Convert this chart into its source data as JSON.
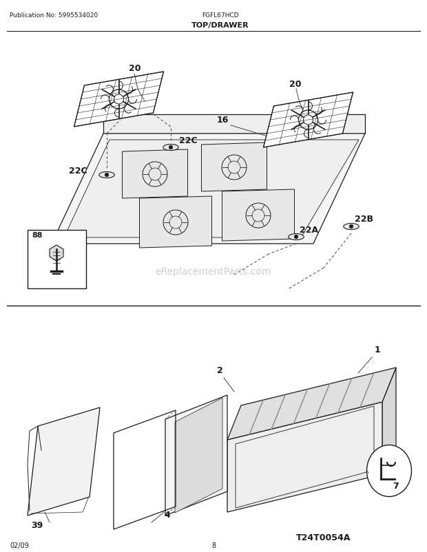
{
  "title": "TOP/DRAWER",
  "pub_no": "Publication No: 5995534020",
  "model": "FGFL67HCD",
  "date": "02/09",
  "page": "8",
  "watermark": "eReplacementParts.com",
  "watermark_color": "#c8c8c8",
  "bg_color": "#ffffff",
  "line_color": "#1a1a1a",
  "label_color": "#111111"
}
